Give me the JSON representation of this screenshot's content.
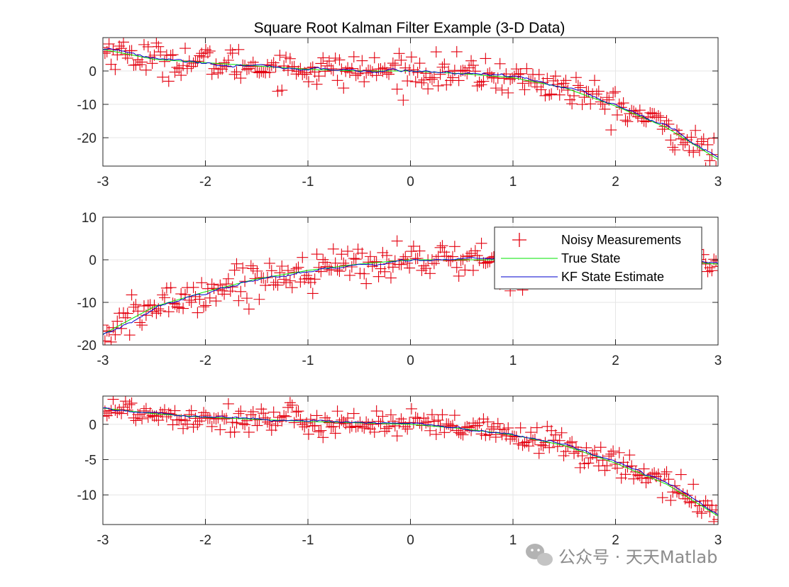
{
  "title": "Square Root Kalman Filter Example (3-D Data)",
  "watermark": "公众号 · 天天Matlab",
  "colors": {
    "measurement": "#e3000f",
    "true_state": "#00e600",
    "estimate": "#0000cc",
    "grid": "#e6e6e6",
    "axis": "#262626"
  },
  "chart_data": [
    {
      "type": "line",
      "xlim": [
        -3,
        3
      ],
      "ylim": [
        -28.5,
        10
      ],
      "xticks": [
        -3,
        -2,
        -1,
        0,
        1,
        2,
        3
      ],
      "yticks": [
        -20,
        -10,
        0
      ],
      "grid": true,
      "true_state": {
        "x": [
          -3,
          -2.5,
          -2,
          -1.5,
          -1,
          -0.5,
          0,
          0.5,
          1,
          1.5,
          2,
          2.5,
          3
        ],
        "y": [
          6.5,
          3.5,
          2.5,
          1.5,
          0.5,
          0,
          0,
          -0.8,
          -2,
          -5,
          -10.5,
          -17,
          -26.5
        ]
      },
      "noise_sd": 2.5,
      "estimate_sd": 0.8
    },
    {
      "type": "line",
      "xlim": [
        -3,
        3
      ],
      "ylim": [
        -20,
        10
      ],
      "xticks": [
        -3,
        -2,
        -1,
        0,
        1,
        2,
        3
      ],
      "yticks": [
        -20,
        -10,
        0,
        10
      ],
      "grid": true,
      "true_state": {
        "x": [
          -3,
          -2.5,
          -2,
          -1.5,
          -1,
          -0.5,
          0,
          0.5,
          1,
          1.5,
          2,
          2.5,
          3
        ],
        "y": [
          -17.5,
          -11,
          -7.5,
          -4.5,
          -2.5,
          -1,
          0,
          0,
          0,
          0,
          0,
          -0.3,
          -1
        ]
      },
      "noise_sd": 2.2,
      "estimate_sd": 0.6
    },
    {
      "type": "line",
      "xlim": [
        -3,
        3
      ],
      "ylim": [
        -14.2,
        4
      ],
      "xticks": [
        -3,
        -2,
        -1,
        0,
        1,
        2,
        3
      ],
      "yticks": [
        -10,
        -5,
        0
      ],
      "grid": true,
      "true_state": {
        "x": [
          -3,
          -2.5,
          -2,
          -1.5,
          -1,
          -0.5,
          0,
          0.5,
          1,
          1.5,
          2,
          2.5,
          3
        ],
        "y": [
          2.3,
          1.5,
          1,
          0.7,
          0.4,
          0.2,
          0,
          -0.6,
          -1.5,
          -3,
          -5.5,
          -8.5,
          -13
        ]
      },
      "noise_sd": 1.0,
      "estimate_sd": 0.3
    }
  ],
  "legend": {
    "placement": "top-right",
    "entries": [
      {
        "label": "Noisy Measurements",
        "marker": "plus"
      },
      {
        "label": "True State",
        "marker": "line"
      },
      {
        "label": "KF State Estimate",
        "marker": "line"
      }
    ]
  }
}
